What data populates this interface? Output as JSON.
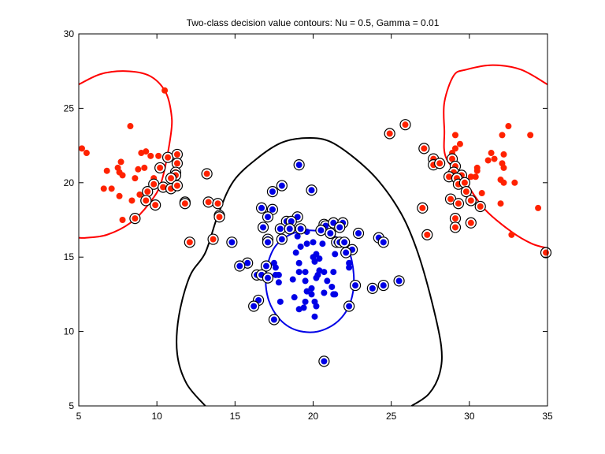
{
  "chart_data": {
    "type": "scatter",
    "title": "Two-class decision value contours: Nu =   0.5, Gamma =  0.01",
    "xlabel": "",
    "ylabel": "",
    "xlim": [
      5,
      35
    ],
    "ylim": [
      5,
      30
    ],
    "xticks": [
      "5",
      "10",
      "15",
      "20",
      "25",
      "30",
      "35"
    ],
    "yticks": [
      "5",
      "10",
      "15",
      "20",
      "25",
      "30"
    ],
    "grid": false,
    "legend": "none",
    "colors": {
      "red": "#ff2200",
      "blue": "#0000e6",
      "support_ring": "#000000",
      "boundary": "#000000"
    },
    "series": [
      {
        "class": "red",
        "support_vector": false,
        "points": [
          [
            5.2,
            22.3
          ],
          [
            5.5,
            22.0
          ],
          [
            8.3,
            23.8
          ],
          [
            10.5,
            26.2
          ],
          [
            9.0,
            22.0
          ],
          [
            9.3,
            22.1
          ],
          [
            9.6,
            21.8
          ],
          [
            10.1,
            21.8
          ],
          [
            7.7,
            21.4
          ],
          [
            7.5,
            21.0
          ],
          [
            8.8,
            20.9
          ],
          [
            9.2,
            21.0
          ],
          [
            6.8,
            20.8
          ],
          [
            7.6,
            20.7
          ],
          [
            7.8,
            20.5
          ],
          [
            8.6,
            20.3
          ],
          [
            9.8,
            20.3
          ],
          [
            6.6,
            19.6
          ],
          [
            7.1,
            19.6
          ],
          [
            7.6,
            19.1
          ],
          [
            8.9,
            19.2
          ],
          [
            8.4,
            18.8
          ],
          [
            7.8,
            17.5
          ],
          [
            32.5,
            23.8
          ],
          [
            32.1,
            23.2
          ],
          [
            33.9,
            23.2
          ],
          [
            29.1,
            23.2
          ],
          [
            29.4,
            22.6
          ],
          [
            29.1,
            22.3
          ],
          [
            28.9,
            22.0
          ],
          [
            31.4,
            22.0
          ],
          [
            32.2,
            21.9
          ],
          [
            31.6,
            21.6
          ],
          [
            31.2,
            21.5
          ],
          [
            32.1,
            21.3
          ],
          [
            32.2,
            21.0
          ],
          [
            30.5,
            21.0
          ],
          [
            30.5,
            20.8
          ],
          [
            30.1,
            20.4
          ],
          [
            30.4,
            20.4
          ],
          [
            32.0,
            20.2
          ],
          [
            32.2,
            20.0
          ],
          [
            32.9,
            20.0
          ],
          [
            30.8,
            19.3
          ],
          [
            32.0,
            18.6
          ],
          [
            34.4,
            18.3
          ],
          [
            32.7,
            16.5
          ]
        ]
      },
      {
        "class": "red",
        "support_vector": true,
        "points": [
          [
            10.7,
            21.7
          ],
          [
            11.3,
            21.9
          ],
          [
            11.3,
            21.3
          ],
          [
            11.2,
            20.7
          ],
          [
            11.2,
            20.5
          ],
          [
            10.2,
            21.0
          ],
          [
            10.9,
            20.3
          ],
          [
            9.8,
            19.9
          ],
          [
            10.4,
            19.7
          ],
          [
            10.9,
            19.6
          ],
          [
            11.3,
            19.8
          ],
          [
            9.4,
            19.4
          ],
          [
            9.3,
            18.8
          ],
          [
            9.9,
            18.5
          ],
          [
            8.6,
            17.6
          ],
          [
            11.8,
            18.7
          ],
          [
            11.8,
            18.6
          ],
          [
            13.2,
            20.6
          ],
          [
            13.3,
            18.7
          ],
          [
            13.9,
            18.6
          ],
          [
            14.0,
            17.8
          ],
          [
            14.0,
            17.7
          ],
          [
            12.1,
            16.0
          ],
          [
            13.6,
            16.2
          ],
          [
            24.9,
            23.3
          ],
          [
            25.9,
            23.9
          ],
          [
            27.1,
            22.3
          ],
          [
            27.7,
            21.6
          ],
          [
            27.7,
            21.2
          ],
          [
            28.1,
            21.3
          ],
          [
            28.9,
            21.6
          ],
          [
            29.1,
            21.1
          ],
          [
            29.0,
            20.7
          ],
          [
            29.5,
            20.5
          ],
          [
            28.7,
            20.4
          ],
          [
            29.2,
            20.3
          ],
          [
            29.3,
            19.9
          ],
          [
            29.7,
            20.0
          ],
          [
            29.8,
            19.4
          ],
          [
            28.8,
            18.9
          ],
          [
            29.3,
            18.6
          ],
          [
            30.1,
            18.8
          ],
          [
            30.7,
            18.4
          ],
          [
            27.0,
            18.3
          ],
          [
            29.1,
            17.6
          ],
          [
            29.1,
            17.0
          ],
          [
            30.1,
            17.3
          ],
          [
            27.3,
            16.5
          ],
          [
            34.9,
            15.3
          ]
        ]
      },
      {
        "class": "blue",
        "support_vector": false,
        "points": [
          [
            19.6,
            16.7
          ],
          [
            19.0,
            16.4
          ],
          [
            19.6,
            15.9
          ],
          [
            20.0,
            16.0
          ],
          [
            20.6,
            15.9
          ],
          [
            19.2,
            15.7
          ],
          [
            18.9,
            15.3
          ],
          [
            20.2,
            15.2
          ],
          [
            20.0,
            15.0
          ],
          [
            20.4,
            14.9
          ],
          [
            21.4,
            15.2
          ],
          [
            20.1,
            14.7
          ],
          [
            19.1,
            14.6
          ],
          [
            17.5,
            14.6
          ],
          [
            17.6,
            14.3
          ],
          [
            22.3,
            14.6
          ],
          [
            22.3,
            14.3
          ],
          [
            19.1,
            14.0
          ],
          [
            19.5,
            14.0
          ],
          [
            20.4,
            14.1
          ],
          [
            20.7,
            14.0
          ],
          [
            21.3,
            14.0
          ],
          [
            20.3,
            13.8
          ],
          [
            20.2,
            13.6
          ],
          [
            17.6,
            13.8
          ],
          [
            17.8,
            13.8
          ],
          [
            18.7,
            13.5
          ],
          [
            19.5,
            13.4
          ],
          [
            20.9,
            13.4
          ],
          [
            17.8,
            13.3
          ],
          [
            21.2,
            13.0
          ],
          [
            19.9,
            12.9
          ],
          [
            19.6,
            12.7
          ],
          [
            20.7,
            12.6
          ],
          [
            19.9,
            12.5
          ],
          [
            21.3,
            12.5
          ],
          [
            21.4,
            12.5
          ],
          [
            18.8,
            12.3
          ],
          [
            17.9,
            12.0
          ],
          [
            19.5,
            12.0
          ],
          [
            20.1,
            12.0
          ],
          [
            20.2,
            11.7
          ],
          [
            19.1,
            11.5
          ],
          [
            19.4,
            11.6
          ],
          [
            20.1,
            11.0
          ]
        ]
      },
      {
        "class": "blue",
        "support_vector": true,
        "points": [
          [
            19.1,
            21.2
          ],
          [
            18.0,
            19.8
          ],
          [
            17.4,
            19.4
          ],
          [
            19.9,
            19.5
          ],
          [
            16.7,
            18.3
          ],
          [
            17.4,
            18.2
          ],
          [
            17.1,
            17.7
          ],
          [
            19.0,
            17.7
          ],
          [
            18.3,
            17.4
          ],
          [
            18.6,
            17.4
          ],
          [
            16.8,
            17.0
          ],
          [
            17.9,
            16.9
          ],
          [
            18.5,
            16.9
          ],
          [
            19.2,
            16.9
          ],
          [
            20.7,
            17.2
          ],
          [
            20.8,
            17.1
          ],
          [
            21.3,
            17.3
          ],
          [
            21.9,
            17.3
          ],
          [
            21.7,
            17.0
          ],
          [
            20.5,
            16.8
          ],
          [
            21.1,
            16.6
          ],
          [
            22.9,
            16.6
          ],
          [
            17.1,
            16.2
          ],
          [
            17.1,
            16.0
          ],
          [
            18.0,
            16.2
          ],
          [
            21.5,
            16.0
          ],
          [
            21.7,
            16.0
          ],
          [
            22.0,
            16.0
          ],
          [
            22.5,
            15.5
          ],
          [
            22.1,
            15.3
          ],
          [
            24.2,
            16.3
          ],
          [
            24.5,
            16.0
          ],
          [
            14.8,
            16.0
          ],
          [
            15.8,
            14.6
          ],
          [
            15.3,
            14.4
          ],
          [
            17.0,
            14.4
          ],
          [
            16.4,
            13.8
          ],
          [
            16.7,
            13.8
          ],
          [
            17.1,
            13.6
          ],
          [
            22.7,
            13.1
          ],
          [
            23.8,
            12.9
          ],
          [
            24.5,
            13.1
          ],
          [
            25.5,
            13.4
          ],
          [
            16.5,
            12.1
          ],
          [
            16.2,
            11.7
          ],
          [
            22.3,
            11.7
          ],
          [
            17.5,
            10.8
          ],
          [
            20.7,
            8.0
          ]
        ]
      }
    ],
    "contours": [
      {
        "color": "#000000",
        "closed": false,
        "points": [
          [
            13.1,
            5
          ],
          [
            11.9,
            6.5
          ],
          [
            11.3,
            8.5
          ],
          [
            11.4,
            11
          ],
          [
            12.1,
            13.7
          ],
          [
            13.1,
            15.3
          ],
          [
            13.9,
            17.8
          ],
          [
            14.9,
            20.1
          ],
          [
            16.5,
            21.7
          ],
          [
            18,
            22.7
          ],
          [
            19.5,
            23.0
          ],
          [
            21,
            22.8
          ],
          [
            22.6,
            21.7
          ],
          [
            24.2,
            20.1
          ],
          [
            25.7,
            17.8
          ],
          [
            26.7,
            15.3
          ],
          [
            27.6,
            12
          ],
          [
            28.2,
            9
          ],
          [
            28.1,
            7.2
          ],
          [
            27.4,
            5.8
          ],
          [
            26.3,
            5
          ]
        ]
      },
      {
        "color": "#0000e6",
        "closed": true,
        "points": [
          [
            19.8,
            16.8
          ],
          [
            21.2,
            16.5
          ],
          [
            22.2,
            15.6
          ],
          [
            22.6,
            13.8
          ],
          [
            22.4,
            12.0
          ],
          [
            21.6,
            10.7
          ],
          [
            20.3,
            10.0
          ],
          [
            18.9,
            10.1
          ],
          [
            17.8,
            10.9
          ],
          [
            17.1,
            12.3
          ],
          [
            17.0,
            14.0
          ],
          [
            17.5,
            15.6
          ],
          [
            18.5,
            16.5
          ]
        ]
      },
      {
        "color": "#ff0000",
        "closed": false,
        "points": [
          [
            5,
            26.6
          ],
          [
            6.4,
            27.3
          ],
          [
            8,
            27.5
          ],
          [
            9.5,
            27.2
          ],
          [
            10.5,
            26.2
          ],
          [
            10.9,
            24.8
          ],
          [
            10.9,
            23.3
          ],
          [
            10.3,
            20.1
          ],
          [
            9.5,
            18.6
          ],
          [
            8.3,
            17.3
          ],
          [
            6.8,
            16.5
          ],
          [
            5.5,
            16.3
          ],
          [
            5,
            16.3
          ]
        ]
      },
      {
        "color": "#ff0000",
        "closed": false,
        "points": [
          [
            35,
            26.6
          ],
          [
            33.3,
            27.6
          ],
          [
            31.5,
            27.9
          ],
          [
            29.8,
            27.6
          ],
          [
            29.0,
            27.2
          ],
          [
            28.4,
            25.4
          ],
          [
            28.4,
            23.5
          ],
          [
            28.5,
            21.7
          ],
          [
            29.7,
            20.1
          ],
          [
            31.0,
            18.2
          ],
          [
            32.7,
            16.7
          ],
          [
            34,
            15.9
          ],
          [
            35,
            15.6
          ]
        ]
      }
    ]
  }
}
